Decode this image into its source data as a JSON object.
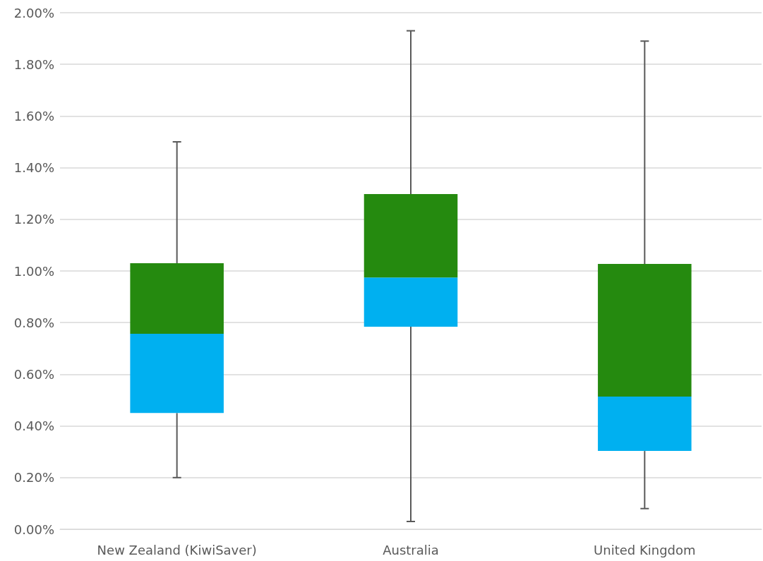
{
  "chart_data": {
    "type": "box",
    "categories": [
      "New Zealand (KiwiSaver)",
      "Australia",
      "United Kingdom"
    ],
    "series": [
      {
        "color": "#258a0f",
        "colors": [
          "#00b0f0",
          "#00b0f0",
          "#00b0f0"
        ],
        "boxes": [
          {
            "low": 0.2,
            "q1": 0.45,
            "median": 0.757,
            "q3": 1.03,
            "high": 1.5
          },
          {
            "low": 0.03,
            "q1": 0.784,
            "median": 0.975,
            "q3": 1.298,
            "high": 1.93
          },
          {
            "low": 0.08,
            "q1": 0.303,
            "median": 0.514,
            "q3": 1.027,
            "high": 1.89
          }
        ]
      }
    ],
    "ylim": [
      0,
      2
    ],
    "yticks": [
      {
        "value": 0,
        "label": "0.00%"
      },
      {
        "value": 0.2,
        "label": "0.20%"
      },
      {
        "value": 0.4,
        "label": "0.40%"
      },
      {
        "value": 0.6,
        "label": "0.60%"
      },
      {
        "value": 0.8,
        "label": "0.80%"
      },
      {
        "value": 1,
        "label": "1.00%"
      },
      {
        "value": 1.2,
        "label": "1.20%"
      },
      {
        "value": 1.4,
        "label": "1.40%"
      },
      {
        "value": 1.6,
        "label": "1.60%"
      },
      {
        "value": 1.8,
        "label": "1.80%"
      },
      {
        "value": 2,
        "label": "2.00%"
      }
    ],
    "grid": "y"
  }
}
